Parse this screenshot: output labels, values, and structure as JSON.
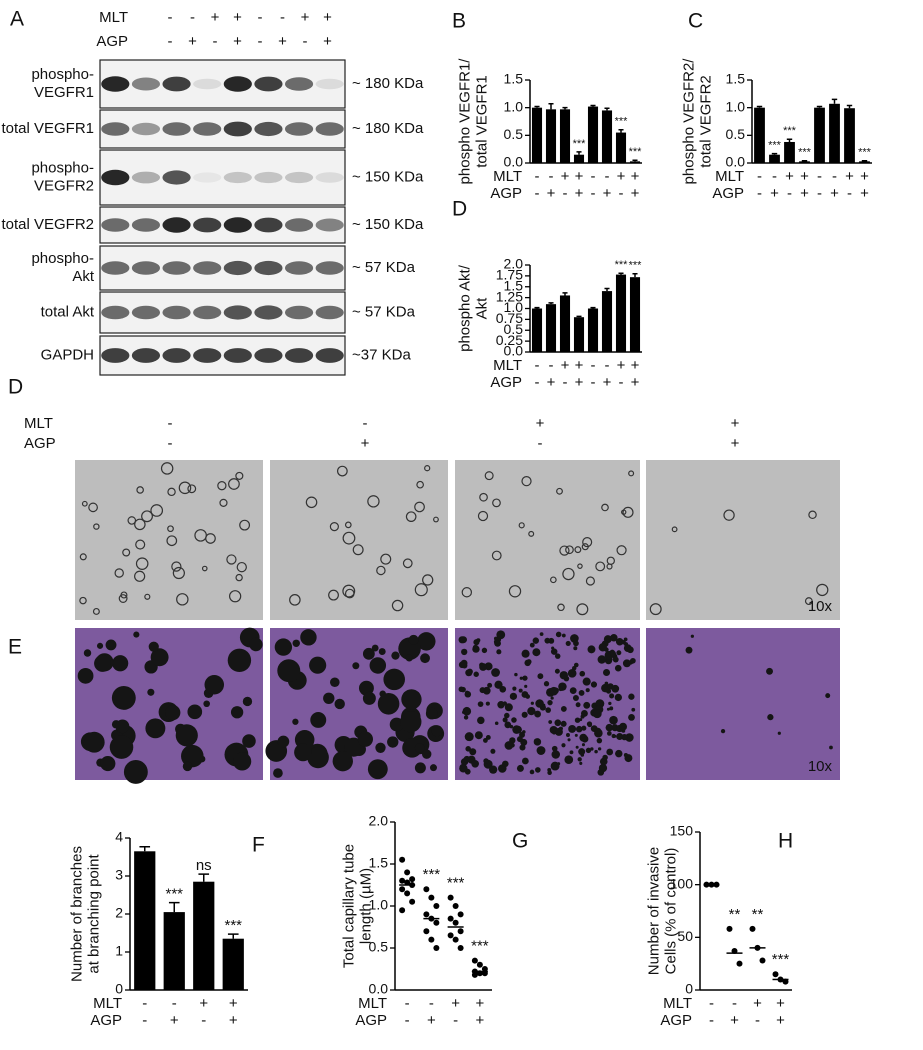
{
  "blot": {
    "panel": "A",
    "conditions": [
      {
        "name": "MLT",
        "signs": [
          "-",
          "-",
          "+",
          "+",
          "-",
          "-",
          "+",
          "+"
        ]
      },
      {
        "name": "AGP",
        "signs": [
          "-",
          "+",
          "-",
          "+",
          "-",
          "+",
          "-",
          "+"
        ]
      }
    ],
    "rows": [
      {
        "label": [
          "phospho-",
          "VEGFR1"
        ],
        "size": "~ 180 KDa"
      },
      {
        "label": [
          "total VEGFR1"
        ],
        "size": "~ 180 KDa"
      },
      {
        "label": [
          "phospho-",
          "VEGFR2"
        ],
        "size": "~ 150 KDa"
      },
      {
        "label": [
          "total VEGFR2"
        ],
        "size": "~ 150 KDa"
      },
      {
        "label": [
          "phospho-",
          "Akt"
        ],
        "size": "~ 57 KDa"
      },
      {
        "label": [
          "total Akt"
        ],
        "size": "~ 57 KDa"
      },
      {
        "label": [
          "GAPDH"
        ],
        "size": "~37 KDa"
      }
    ]
  },
  "images": {
    "panels": [
      "D",
      "E"
    ],
    "conditions": [
      {
        "name": "MLT",
        "signs": [
          "-",
          "-",
          "+",
          "+"
        ]
      },
      {
        "name": "AGP",
        "signs": [
          "-",
          "+",
          "-",
          "+"
        ]
      }
    ],
    "magnification": "10x"
  },
  "chart_data": [
    {
      "type": "bar",
      "panel": "B",
      "ylabel": [
        "phospho VEGFR1/",
        "total VEGFR1"
      ],
      "color": "#000000",
      "values": [
        1.0,
        0.97,
        0.97,
        0.15,
        1.02,
        0.95,
        0.55,
        0.03
      ],
      "errors": [
        0.02,
        0.1,
        0.03,
        0.05,
        0.02,
        0.04,
        0.05,
        0.02
      ],
      "annotations": [
        null,
        null,
        null,
        "***",
        null,
        null,
        "***",
        "***"
      ],
      "ylim": [
        0,
        1.5
      ],
      "yticks": [
        {
          "value": 0,
          "label": "0.0"
        },
        0.5,
        {
          "value": 1,
          "label": "1.0"
        },
        1.5
      ],
      "conditions": [
        {
          "name": "MLT",
          "signs": [
            "-",
            "-",
            "+",
            "+",
            "-",
            "-",
            "+",
            "+"
          ]
        },
        {
          "name": "AGP",
          "signs": [
            "-",
            "+",
            "-",
            "+",
            "-",
            "+",
            "-",
            "+"
          ]
        }
      ]
    },
    {
      "type": "bar",
      "panel": "C",
      "ylabel": [
        "phospho VEGFR2/",
        "total VEGFR2"
      ],
      "color": "#000000",
      "values": [
        1.0,
        0.15,
        0.38,
        0.03,
        1.0,
        1.07,
        0.99,
        0.03
      ],
      "errors": [
        0.02,
        0.02,
        0.05,
        0.01,
        0.02,
        0.08,
        0.05,
        0.01
      ],
      "annotations": [
        null,
        "***",
        "***",
        "***",
        null,
        null,
        null,
        "***"
      ],
      "ylim": [
        0,
        1.5
      ],
      "yticks": [
        {
          "value": 0,
          "label": "0.0"
        },
        0.5,
        {
          "value": 1,
          "label": "1.0"
        },
        1.5
      ],
      "conditions": [
        {
          "name": "MLT",
          "signs": [
            "-",
            "-",
            "+",
            "+",
            "-",
            "-",
            "+",
            "+"
          ]
        },
        {
          "name": "AGP",
          "signs": [
            "-",
            "+",
            "-",
            "+",
            "-",
            "+",
            "-",
            "+"
          ]
        }
      ]
    },
    {
      "type": "bar",
      "panel": "D",
      "ylabel": [
        "phospho Akt/",
        "Akt"
      ],
      "color": "#000000",
      "values": [
        1.0,
        1.1,
        1.3,
        0.8,
        1.0,
        1.4,
        1.78,
        1.72
      ],
      "errors": [
        0.02,
        0.03,
        0.06,
        0.02,
        0.02,
        0.06,
        0.03,
        0.08
      ],
      "annotations": [
        null,
        null,
        null,
        null,
        null,
        null,
        "***",
        "***"
      ],
      "ylim": [
        0,
        2
      ],
      "yticks": [
        {
          "value": 0,
          "label": "0.0"
        },
        0.25,
        0.5,
        0.75,
        {
          "value": 1,
          "label": "1.0"
        },
        1.25,
        1.5,
        1.75,
        {
          "value": 2,
          "label": "2.0"
        }
      ],
      "conditions": [
        {
          "name": "MLT",
          "signs": [
            "-",
            "-",
            "+",
            "+",
            "-",
            "-",
            "+",
            "+"
          ]
        },
        {
          "name": "AGP",
          "signs": [
            "-",
            "+",
            "-",
            "+",
            "-",
            "+",
            "-",
            "+"
          ]
        }
      ]
    },
    {
      "type": "bar",
      "panel": "F",
      "ylabel": [
        "Number of branches",
        "at branching point"
      ],
      "color": "#000000",
      "values": [
        3.65,
        2.05,
        2.85,
        1.35
      ],
      "errors": [
        0.12,
        0.25,
        0.2,
        0.12
      ],
      "annotations": [
        null,
        "***",
        "ns",
        "***"
      ],
      "ylim": [
        0,
        4
      ],
      "yticks": [
        0,
        1,
        2,
        3,
        4
      ],
      "conditions": [
        {
          "name": "MLT",
          "signs": [
            "-",
            "-",
            "+",
            "+"
          ]
        },
        {
          "name": "AGP",
          "signs": [
            "-",
            "+",
            "-",
            "+"
          ]
        }
      ]
    },
    {
      "type": "strip",
      "panel": "G",
      "ylabel": [
        "Total capillary tube",
        "length (µM)"
      ],
      "color": "#000000",
      "groups": [
        [
          1.55,
          1.4,
          1.32,
          1.3,
          1.28,
          1.25,
          1.2,
          1.15,
          1.05,
          0.95
        ],
        [
          1.2,
          1.1,
          1.0,
          0.9,
          0.85,
          0.8,
          0.7,
          0.6,
          0.5
        ],
        [
          1.1,
          1.0,
          0.9,
          0.85,
          0.8,
          0.7,
          0.65,
          0.6,
          0.5
        ],
        [
          0.35,
          0.3,
          0.25,
          0.22,
          0.2,
          0.2,
          0.18
        ]
      ],
      "medians": [
        1.25,
        0.85,
        0.75,
        0.22
      ],
      "annotations": [
        null,
        "***",
        "***",
        "***"
      ],
      "ylim": [
        0,
        2
      ],
      "yticks": [
        {
          "value": 0,
          "label": "0.0"
        },
        0.5,
        {
          "value": 1,
          "label": "1.0"
        },
        1.5,
        {
          "value": 2,
          "label": "2.0"
        }
      ],
      "conditions": [
        {
          "name": "MLT",
          "signs": [
            "-",
            "-",
            "+",
            "+"
          ]
        },
        {
          "name": "AGP",
          "signs": [
            "-",
            "+",
            "-",
            "+"
          ]
        }
      ]
    },
    {
      "type": "strip",
      "panel": "H",
      "ylabel": [
        "Number of invasive",
        "Cells (% of control)"
      ],
      "color": "#000000",
      "groups": [
        [
          100,
          100,
          100
        ],
        [
          58,
          37,
          25
        ],
        [
          58,
          40,
          28
        ],
        [
          15,
          10,
          8
        ]
      ],
      "medians": [
        100,
        35,
        40,
        10
      ],
      "annotations": [
        null,
        "**",
        "**",
        "***"
      ],
      "ylim": [
        0,
        150
      ],
      "yticks": [
        0,
        50,
        100,
        150
      ],
      "conditions": [
        {
          "name": "MLT",
          "signs": [
            "-",
            "-",
            "+",
            "+"
          ]
        },
        {
          "name": "AGP",
          "signs": [
            "-",
            "+",
            "-",
            "+"
          ]
        }
      ]
    }
  ]
}
